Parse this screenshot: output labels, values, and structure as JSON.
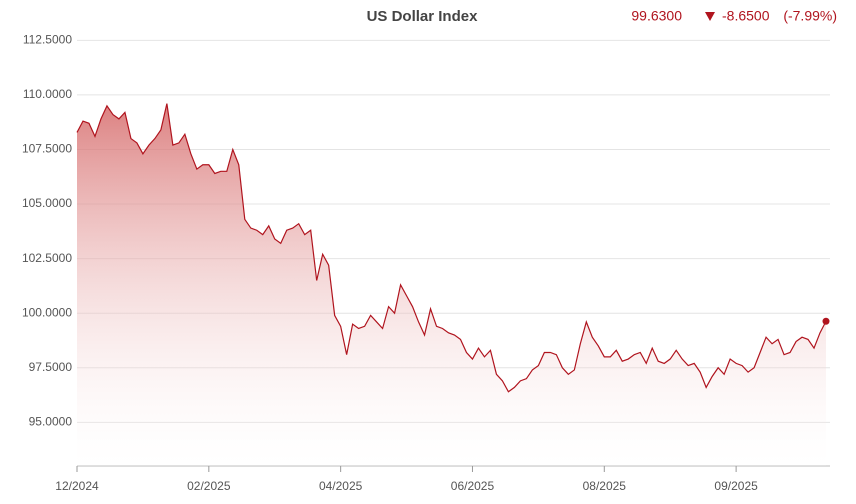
{
  "chart_data": {
    "type": "area",
    "title": "US Dollar Index",
    "last_value": "99.6300",
    "change": "-8.6500",
    "change_pct": "(-7.99%)",
    "color": "#b0141e",
    "categories": [
      "12/2024",
      null,
      null,
      null,
      null,
      null,
      null,
      null,
      null,
      null,
      null,
      null,
      null,
      null,
      null,
      null,
      null,
      null,
      null,
      null,
      null,
      null,
      "02/2025",
      null,
      null,
      null,
      null,
      null,
      null,
      null,
      null,
      null,
      null,
      null,
      null,
      null,
      null,
      null,
      null,
      null,
      null,
      null,
      null,
      null,
      "04/2025",
      null,
      null,
      null,
      null,
      null,
      null,
      null,
      null,
      null,
      null,
      null,
      null,
      null,
      null,
      null,
      null,
      null,
      null,
      null,
      null,
      null,
      "06/2025",
      null,
      null,
      null,
      null,
      null,
      null,
      null,
      null,
      null,
      null,
      null,
      null,
      null,
      null,
      null,
      null,
      null,
      null,
      null,
      null,
      null,
      "08/2025",
      null,
      null,
      null,
      null,
      null,
      null,
      null,
      null,
      null,
      null,
      null,
      null,
      null,
      null,
      null,
      null,
      null,
      null,
      null,
      null,
      null,
      "09/2025",
      null,
      null,
      null,
      null,
      null,
      null,
      null,
      null,
      null,
      null,
      null,
      null,
      null,
      null,
      null
    ],
    "values": [
      108.28,
      108.8,
      108.7,
      108.1,
      108.9,
      109.5,
      109.1,
      108.9,
      109.2,
      108.0,
      107.8,
      107.3,
      107.7,
      108.0,
      108.4,
      109.6,
      107.7,
      107.8,
      108.2,
      107.3,
      106.6,
      106.8,
      106.8,
      106.4,
      106.5,
      106.5,
      107.5,
      106.8,
      104.3,
      103.9,
      103.8,
      103.6,
      104.0,
      103.4,
      103.2,
      103.8,
      103.9,
      104.1,
      103.6,
      103.8,
      101.5,
      102.7,
      102.2,
      99.9,
      99.4,
      98.1,
      99.5,
      99.3,
      99.4,
      99.9,
      99.6,
      99.3,
      100.3,
      100.0,
      101.3,
      100.8,
      100.3,
      99.6,
      99.0,
      100.2,
      99.4,
      99.3,
      99.1,
      99.0,
      98.8,
      98.2,
      97.9,
      98.4,
      98.0,
      98.3,
      97.2,
      96.9,
      96.4,
      96.6,
      96.9,
      97.0,
      97.4,
      97.6,
      98.2,
      98.2,
      98.1,
      97.5,
      97.2,
      97.4,
      98.6,
      99.6,
      98.9,
      98.5,
      98.0,
      98.0,
      98.3,
      97.8,
      97.9,
      98.1,
      98.2,
      97.7,
      98.4,
      97.8,
      97.7,
      97.9,
      98.3,
      97.9,
      97.6,
      97.7,
      97.3,
      96.6,
      97.1,
      97.5,
      97.2,
      97.9,
      97.7,
      97.6,
      97.3,
      97.5,
      98.2,
      98.9,
      98.6,
      98.8,
      98.1,
      98.2,
      98.7,
      98.9,
      98.8,
      98.4,
      99.1,
      99.63
    ],
    "ylim": [
      93,
      113.5
    ],
    "yticks": [
      {
        "value": 95,
        "label": "95.0000"
      },
      {
        "value": 97.5,
        "label": "97.5000"
      },
      {
        "value": 100,
        "label": "100.0000"
      },
      {
        "value": 102.5,
        "label": "102.5000"
      },
      {
        "value": 105,
        "label": "105.0000"
      },
      {
        "value": 107.5,
        "label": "107.5000"
      },
      {
        "value": 110,
        "label": "110.0000"
      },
      {
        "value": 112.5,
        "label": "112.5000"
      }
    ],
    "grid": true
  }
}
